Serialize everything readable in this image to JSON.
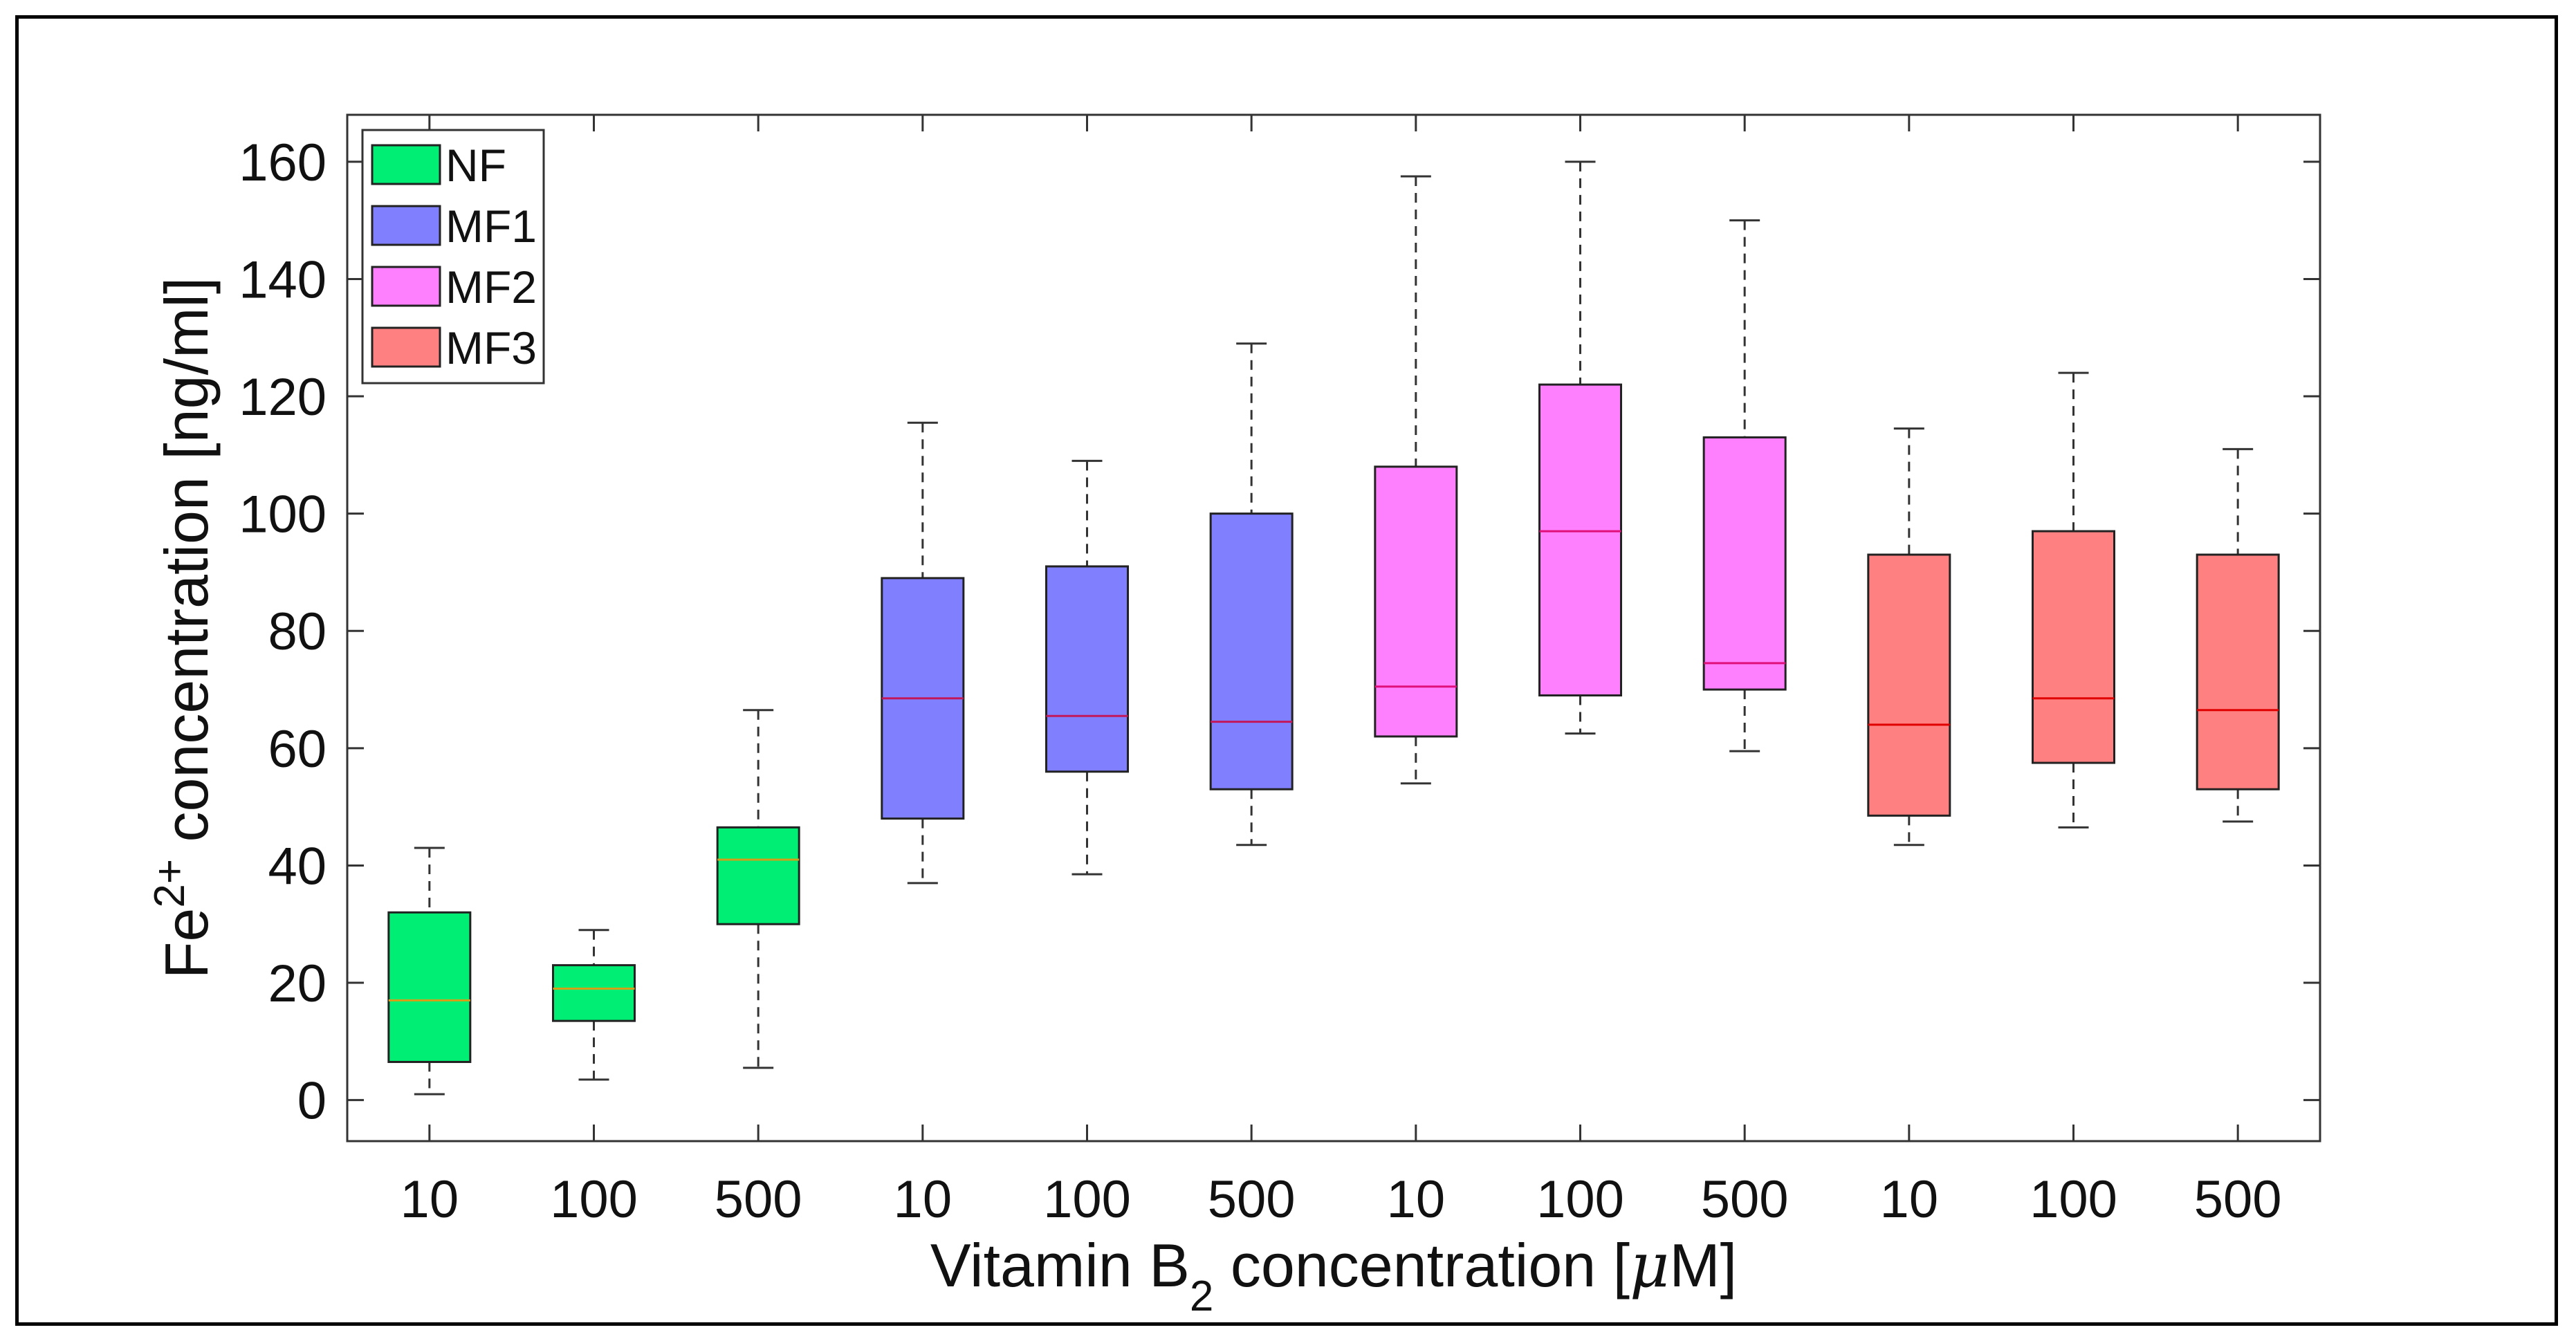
{
  "chart_data": {
    "type": "boxplot",
    "title": "",
    "ylabel": {
      "base": "Fe",
      "sup": "2+",
      "rest": " concentration [ng/ml]"
    },
    "xlabel": {
      "base": "Vitamin B",
      "sub": "2",
      "rest": " concentration [",
      "mu": "μ",
      "unit_end": "M]"
    },
    "ylim": [
      -7,
      168
    ],
    "yticks": [
      0,
      20,
      40,
      60,
      80,
      100,
      120,
      140,
      160
    ],
    "categories": [
      "10",
      "100",
      "500",
      "10",
      "100",
      "500",
      "10",
      "100",
      "500",
      "10",
      "100",
      "500"
    ],
    "legend": [
      {
        "name": "NF",
        "color": "#00ee73"
      },
      {
        "name": "MF1",
        "color": "#8080ff"
      },
      {
        "name": "MF2",
        "color": "#ff80ff"
      },
      {
        "name": "MF3",
        "color": "#ff8080"
      }
    ],
    "boxes": [
      {
        "group": "NF",
        "x": "10",
        "min": 1,
        "q1": 6.5,
        "median": 17,
        "q3": 32,
        "max": 43,
        "color": "#00ee73",
        "median_color": "#d4a017"
      },
      {
        "group": "NF",
        "x": "100",
        "min": 3.5,
        "q1": 13.5,
        "median": 19,
        "q3": 23,
        "max": 29,
        "color": "#00ee73",
        "median_color": "#d4a017"
      },
      {
        "group": "NF",
        "x": "500",
        "min": 5.5,
        "q1": 30,
        "median": 41,
        "q3": 46.5,
        "max": 66.5,
        "color": "#00ee73",
        "median_color": "#d4a017"
      },
      {
        "group": "MF1",
        "x": "10",
        "min": 37,
        "q1": 48,
        "median": 68.5,
        "q3": 89,
        "max": 115.5,
        "color": "#8080ff",
        "median_color": "#c2185b"
      },
      {
        "group": "MF1",
        "x": "100",
        "min": 38.5,
        "q1": 56,
        "median": 65.5,
        "q3": 91,
        "max": 109,
        "color": "#8080ff",
        "median_color": "#c2185b"
      },
      {
        "group": "MF1",
        "x": "500",
        "min": 43.5,
        "q1": 53,
        "median": 64.5,
        "q3": 100,
        "max": 129,
        "color": "#8080ff",
        "median_color": "#c2185b"
      },
      {
        "group": "MF2",
        "x": "10",
        "min": 54,
        "q1": 62,
        "median": 70.5,
        "q3": 108,
        "max": 157.5,
        "color": "#ff80ff",
        "median_color": "#e0107a"
      },
      {
        "group": "MF2",
        "x": "100",
        "min": 62.5,
        "q1": 69,
        "median": 97,
        "q3": 122,
        "max": 160,
        "color": "#ff80ff",
        "median_color": "#e0107a"
      },
      {
        "group": "MF2",
        "x": "500",
        "min": 59.5,
        "q1": 70,
        "median": 74.5,
        "q3": 113,
        "max": 150,
        "color": "#ff80ff",
        "median_color": "#e0107a"
      },
      {
        "group": "MF3",
        "x": "10",
        "min": 43.5,
        "q1": 48.5,
        "median": 64,
        "q3": 93,
        "max": 114.5,
        "color": "#ff8080",
        "median_color": "#e00000"
      },
      {
        "group": "MF3",
        "x": "100",
        "min": 46.5,
        "q1": 57.5,
        "median": 68.5,
        "q3": 97,
        "max": 124,
        "color": "#ff8080",
        "median_color": "#e00000"
      },
      {
        "group": "MF3",
        "x": "500",
        "min": 47.5,
        "q1": 53,
        "median": 66.5,
        "q3": 93,
        "max": 111,
        "color": "#ff8080",
        "median_color": "#e00000"
      }
    ]
  }
}
